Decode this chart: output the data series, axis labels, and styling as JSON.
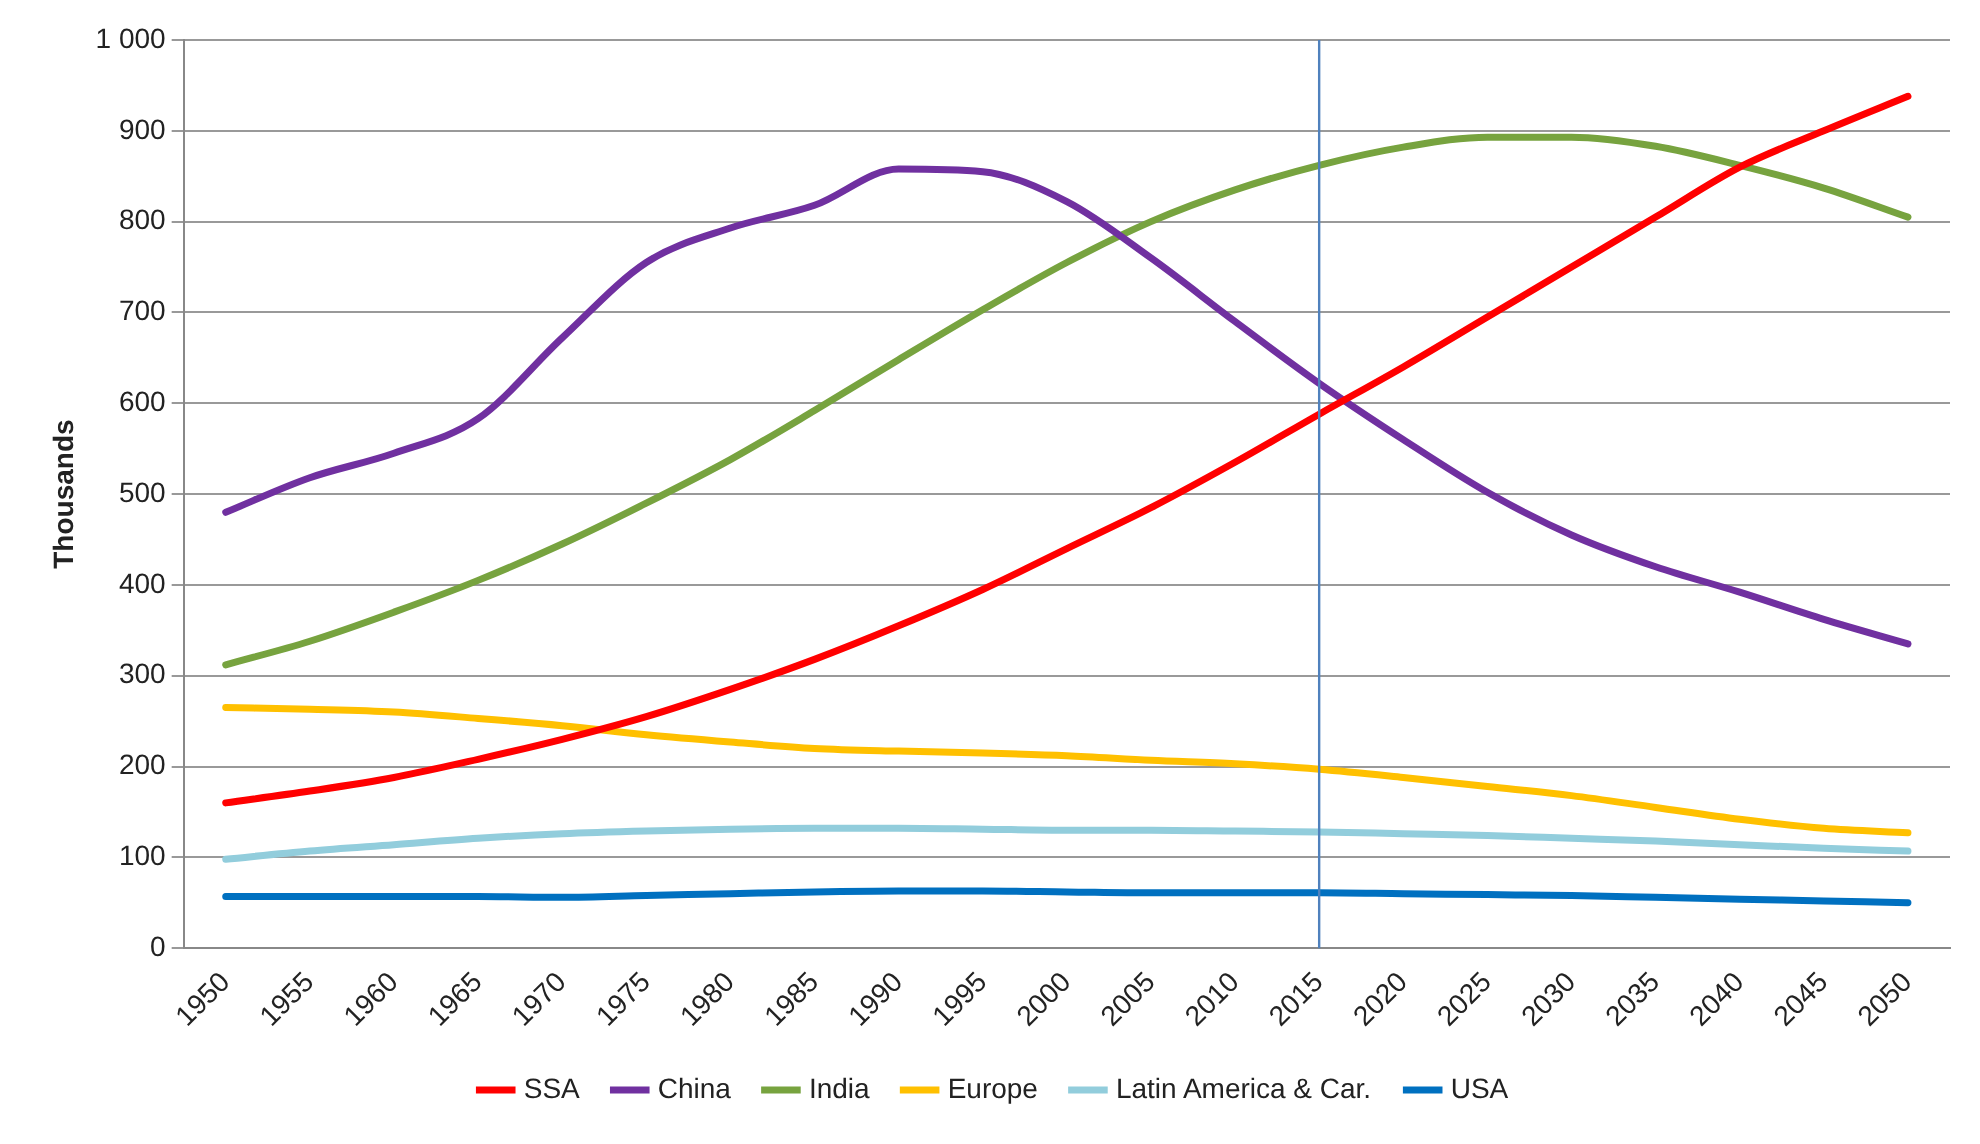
{
  "chart_data": {
    "type": "line",
    "ylabel": "Thousands",
    "categories": [
      "1950",
      "1955",
      "1960",
      "1965",
      "1970",
      "1975",
      "1980",
      "1985",
      "1990",
      "1995",
      "2000",
      "2005",
      "2010",
      "2015",
      "2020",
      "2025",
      "2030",
      "2035",
      "2040",
      "2045",
      "2050"
    ],
    "series": [
      {
        "name": "SSA",
        "color": "#ff0000",
        "values": [
          160,
          173,
          188,
          208,
          230,
          255,
          285,
          318,
          355,
          395,
          440,
          485,
          535,
          588,
          640,
          695,
          750,
          805,
          860,
          900,
          938
        ]
      },
      {
        "name": "China",
        "color": "#7030a0",
        "values": [
          480,
          518,
          545,
          583,
          672,
          755,
          793,
          818,
          858,
          855,
          822,
          760,
          690,
          622,
          560,
          502,
          455,
          420,
          392,
          362,
          335
        ]
      },
      {
        "name": "India",
        "color": "#77a33f",
        "values": [
          312,
          338,
          370,
          405,
          445,
          490,
          538,
          592,
          648,
          703,
          755,
          800,
          835,
          862,
          882,
          893,
          893,
          883,
          862,
          837,
          805
        ]
      },
      {
        "name": "Europe",
        "color": "#ffc000",
        "values": [
          265,
          263,
          260,
          253,
          245,
          235,
          227,
          220,
          217,
          215,
          212,
          207,
          203,
          197,
          188,
          178,
          168,
          155,
          142,
          132,
          127
        ]
      },
      {
        "name": "Latin America & Car.",
        "color": "#92cddc",
        "values": [
          98,
          107,
          114,
          121,
          126,
          129,
          131,
          132,
          132,
          131,
          130,
          130,
          129,
          128,
          126,
          124,
          121,
          118,
          114,
          110,
          107
        ]
      },
      {
        "name": "USA",
        "color": "#0070c0",
        "values": [
          57,
          57,
          57,
          57,
          56,
          58,
          60,
          62,
          63,
          63,
          62,
          61,
          61,
          61,
          60,
          59,
          58,
          56,
          54,
          52,
          50
        ]
      }
    ],
    "ylim": [
      0,
      1000
    ],
    "yticks": [
      0,
      100,
      200,
      300,
      400,
      500,
      600,
      700,
      800,
      900,
      {
        "value": 1000,
        "label": "1 000"
      }
    ],
    "grid": "y",
    "legend": "bottom",
    "marker": "none",
    "line_style": "solid",
    "ref_lines": [
      {
        "axis": "x",
        "value": "2015",
        "color": "#4f81bd"
      }
    ]
  }
}
